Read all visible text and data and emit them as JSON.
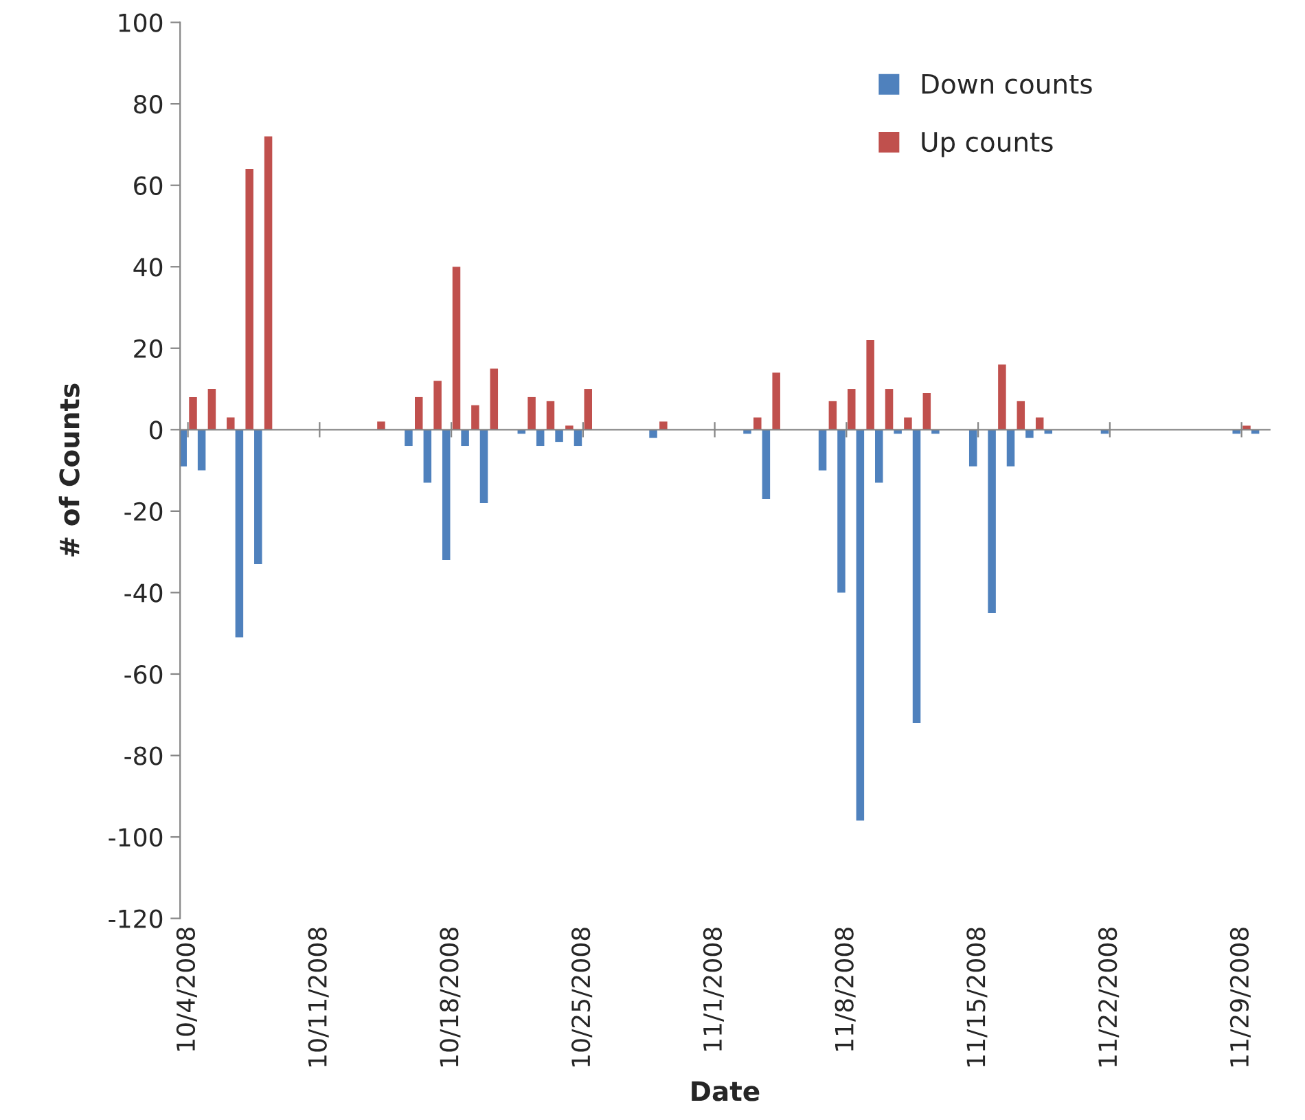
{
  "chart_data": {
    "type": "bar",
    "xlabel": "Date",
    "ylabel": "# of Counts",
    "x": [
      "2008-10-04",
      "2008-10-05",
      "2008-10-06",
      "2008-10-07",
      "2008-10-08",
      "2008-10-14",
      "2008-10-16",
      "2008-10-17",
      "2008-10-18",
      "2008-10-19",
      "2008-10-20",
      "2008-10-22",
      "2008-10-23",
      "2008-10-24",
      "2008-10-25",
      "2008-10-29",
      "2008-11-03",
      "2008-11-04",
      "2008-11-07",
      "2008-11-08",
      "2008-11-09",
      "2008-11-10",
      "2008-11-11",
      "2008-11-12",
      "2008-11-13",
      "2008-11-15",
      "2008-11-16",
      "2008-11-17",
      "2008-11-18",
      "2008-11-19",
      "2008-11-22",
      "2008-11-29",
      "2008-11-30"
    ],
    "series": [
      {
        "name": "Down counts",
        "color": "#4f81bd",
        "values": [
          -9,
          -10,
          null,
          -51,
          -33,
          null,
          -4,
          -13,
          -32,
          -4,
          -18,
          -1,
          -4,
          -3,
          -4,
          -2,
          -1,
          -17,
          -10,
          -40,
          -96,
          -13,
          -1,
          -72,
          -1,
          -9,
          -45,
          -9,
          -2,
          -1,
          -1,
          -1,
          -1
        ]
      },
      {
        "name": "Up counts",
        "color": "#c0504d",
        "values": [
          8,
          10,
          3,
          64,
          72,
          2,
          8,
          12,
          40,
          6,
          15,
          8,
          7,
          1,
          10,
          2,
          3,
          14,
          7,
          10,
          22,
          10,
          3,
          9,
          null,
          null,
          16,
          7,
          3,
          null,
          null,
          1,
          null
        ]
      }
    ],
    "xlim": [
      "2008-10-03T14:00",
      "2008-11-30T12:00"
    ],
    "xticks": [
      {
        "value": "2008-10-04",
        "label": "10/4/2008"
      },
      {
        "value": "2008-10-11",
        "label": "10/11/2008"
      },
      {
        "value": "2008-10-18",
        "label": "10/18/2008"
      },
      {
        "value": "2008-10-25",
        "label": "10/25/2008"
      },
      {
        "value": "2008-11-01",
        "label": "11/1/2008"
      },
      {
        "value": "2008-11-08",
        "label": "11/8/2008"
      },
      {
        "value": "2008-11-15",
        "label": "11/15/2008"
      },
      {
        "value": "2008-11-22",
        "label": "11/22/2008"
      },
      {
        "value": "2008-11-29",
        "label": "11/29/2008"
      }
    ],
    "ylim": [
      -120,
      100
    ],
    "yticks": [
      -120,
      -100,
      -80,
      -60,
      -40,
      -20,
      0,
      20,
      40,
      60,
      80,
      100
    ],
    "legend": "top right"
  }
}
